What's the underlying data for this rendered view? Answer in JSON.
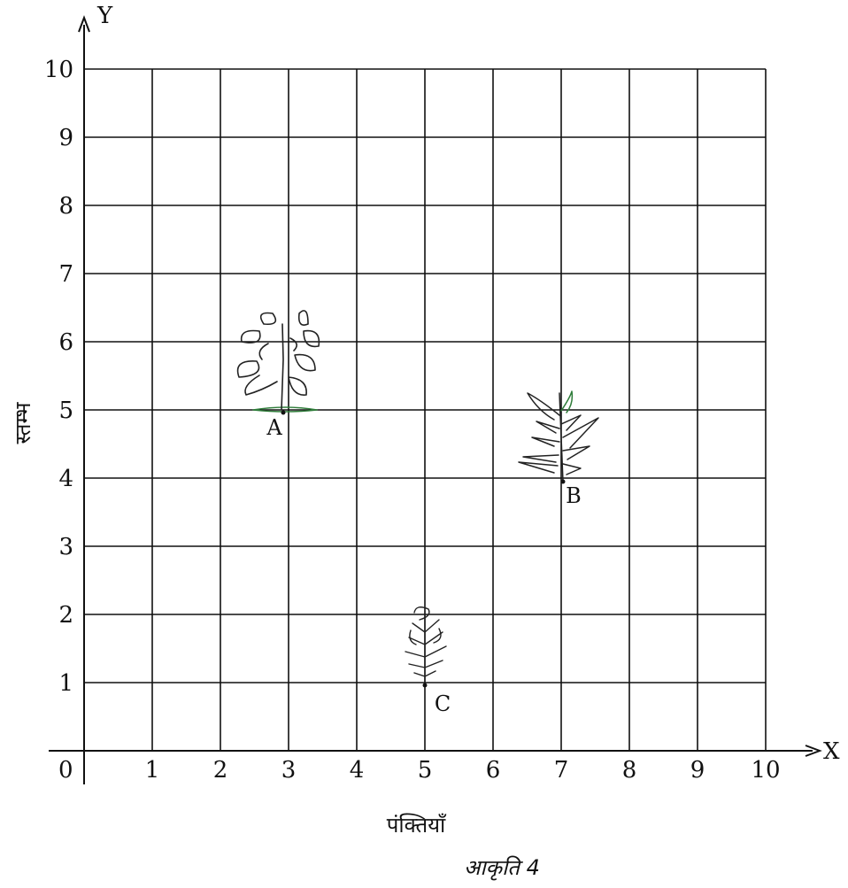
{
  "figure": {
    "x_axis_letter": "X",
    "y_axis_letter": "Y",
    "origin_label": "0",
    "x_ticks": [
      "1",
      "2",
      "3",
      "4",
      "5",
      "6",
      "7",
      "8",
      "9",
      "10"
    ],
    "y_ticks": [
      "1",
      "2",
      "3",
      "4",
      "5",
      "6",
      "7",
      "8",
      "9",
      "10"
    ],
    "x_title": "पंक्तियाँ",
    "y_title": "स्तम्भ",
    "caption": "आकृति 4",
    "grid_max": 10,
    "points": [
      {
        "label": "A",
        "x": 3,
        "y": 5,
        "plant": "bushy-plant",
        "icon": "plant-a-icon"
      },
      {
        "label": "B",
        "x": 7,
        "y": 4,
        "plant": "spiky-plant",
        "icon": "plant-b-icon"
      },
      {
        "label": "C",
        "x": 5,
        "y": 1,
        "plant": "small-plant",
        "icon": "plant-c-icon"
      }
    ]
  }
}
